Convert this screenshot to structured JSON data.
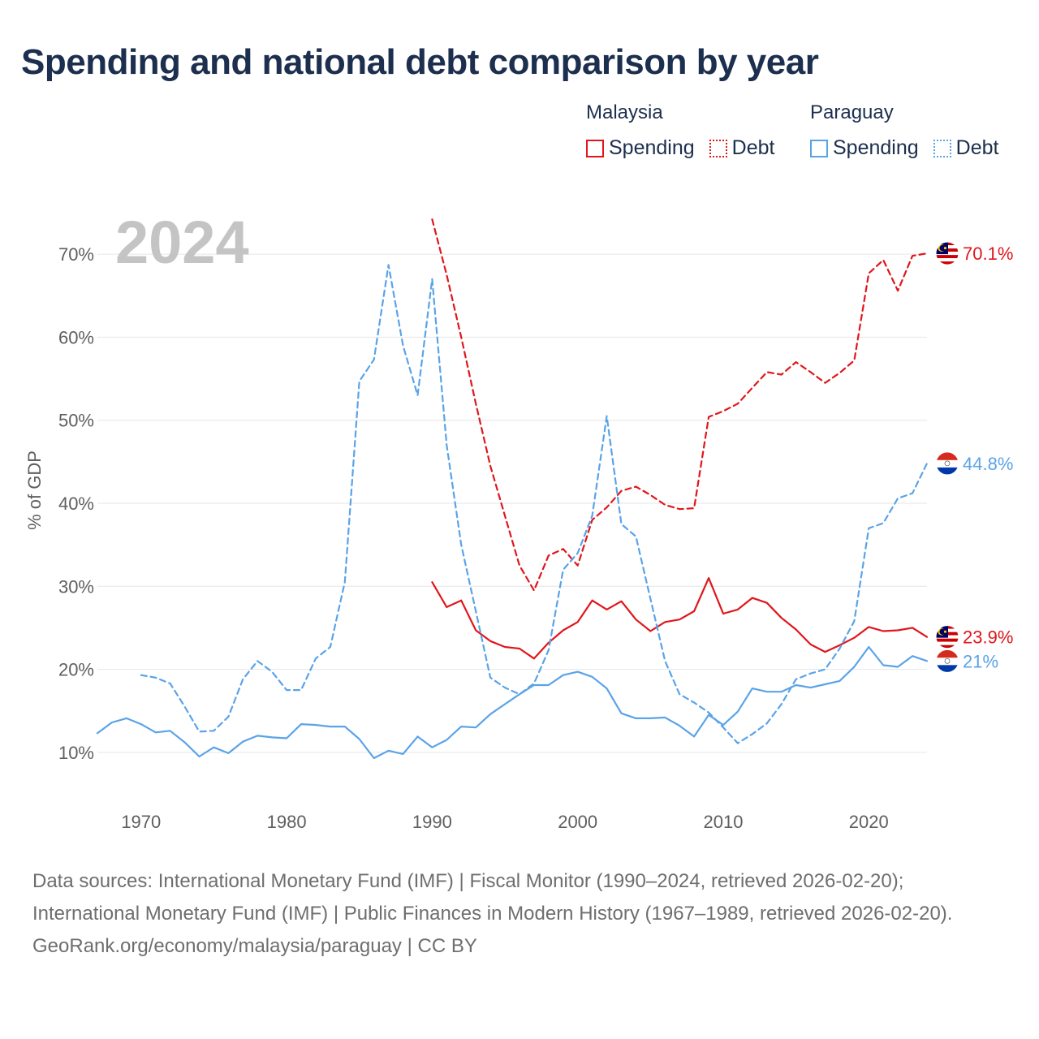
{
  "title": "Spending and national debt comparison by year",
  "legend": {
    "groups": [
      {
        "country": "Malaysia",
        "color": "#e0161b",
        "spending_label": "Spending",
        "debt_label": "Debt"
      },
      {
        "country": "Paraguay",
        "color": "#5aa3e8",
        "spending_label": "Spending",
        "debt_label": "Debt"
      }
    ]
  },
  "footer": {
    "sources": "Data sources: International Monetary Fund (IMF) | Fiscal Monitor (1990–2024, retrieved 2026-02-20); International Monetary Fund (IMF) | Public Finances in Modern History (1967–1989, retrieved 2026-02-20).",
    "credit": "GeoRank.org/economy/malaysia/paraguay | CC BY"
  },
  "chart_data": {
    "type": "line",
    "year_label": "2024",
    "ylabel": "% of GDP",
    "xlim": [
      1967,
      2024
    ],
    "ylim": [
      5,
      75
    ],
    "x_ticks": [
      1970,
      1980,
      1990,
      2000,
      2010,
      2020
    ],
    "x_tick_labels": [
      "1970",
      "1980",
      "1990",
      "2000",
      "2010",
      "2020"
    ],
    "y_ticks": [
      10,
      20,
      30,
      40,
      50,
      60,
      70
    ],
    "y_tick_labels": [
      "10%",
      "20%",
      "30%",
      "40%",
      "50%",
      "60%",
      "70%"
    ],
    "grid": true,
    "series": [
      {
        "name": "Malaysia Debt",
        "country": "Malaysia",
        "metric": "Debt",
        "color": "#e0161b",
        "dashed": true,
        "end_label": "70.1%",
        "x": [
          1990,
          1991,
          1992,
          1993,
          1994,
          1995,
          1996,
          1997,
          1998,
          1999,
          2000,
          2001,
          2002,
          2003,
          2004,
          2005,
          2006,
          2007,
          2008,
          2009,
          2010,
          2011,
          2012,
          2013,
          2014,
          2015,
          2016,
          2017,
          2018,
          2019,
          2020,
          2021,
          2022,
          2023,
          2024
        ],
        "values": [
          74.2,
          67.5,
          60.0,
          52.0,
          44.5,
          38.5,
          32.5,
          29.5,
          33.7,
          34.5,
          32.5,
          38.0,
          39.5,
          41.5,
          42.0,
          41.0,
          39.8,
          39.3,
          39.4,
          50.4,
          51.1,
          52.0,
          53.9,
          55.8,
          55.5,
          57.0,
          55.8,
          54.5,
          55.7,
          57.2,
          67.7,
          69.3,
          65.6,
          69.8,
          70.1
        ]
      },
      {
        "name": "Malaysia Spending",
        "country": "Malaysia",
        "metric": "Spending",
        "color": "#e0161b",
        "dashed": false,
        "end_label": "23.9%",
        "x": [
          1990,
          1991,
          1992,
          1993,
          1994,
          1995,
          1996,
          1997,
          1998,
          1999,
          2000,
          2001,
          2002,
          2003,
          2004,
          2005,
          2006,
          2007,
          2008,
          2009,
          2010,
          2011,
          2012,
          2013,
          2014,
          2015,
          2016,
          2017,
          2018,
          2019,
          2020,
          2021,
          2022,
          2023,
          2024
        ],
        "values": [
          30.5,
          27.5,
          28.3,
          24.7,
          23.4,
          22.7,
          22.5,
          21.3,
          23.2,
          24.7,
          25.7,
          28.3,
          27.2,
          28.2,
          26.0,
          24.6,
          25.7,
          26.0,
          27.0,
          31.0,
          26.7,
          27.2,
          28.6,
          28.0,
          26.2,
          24.8,
          23.0,
          22.1,
          22.9,
          23.8,
          25.1,
          24.6,
          24.7,
          25.0,
          23.9
        ]
      },
      {
        "name": "Paraguay Debt",
        "country": "Paraguay",
        "metric": "Debt",
        "color": "#5aa3e8",
        "dashed": true,
        "end_label": "44.8%",
        "x": [
          1970,
          1971,
          1972,
          1973,
          1974,
          1975,
          1976,
          1977,
          1978,
          1979,
          1980,
          1981,
          1982,
          1983,
          1984,
          1985,
          1986,
          1987,
          1988,
          1989,
          1990,
          1991,
          1992,
          1993,
          1994,
          1995,
          1996,
          1997,
          1998,
          1999,
          2000,
          2001,
          2002,
          2003,
          2004,
          2005,
          2006,
          2007,
          2008,
          2009,
          2010,
          2011,
          2012,
          2013,
          2014,
          2015,
          2016,
          2017,
          2018,
          2019,
          2020,
          2021,
          2022,
          2023,
          2024
        ],
        "values": [
          19.3,
          19.0,
          18.3,
          15.5,
          12.5,
          12.6,
          14.3,
          18.8,
          21.0,
          19.7,
          17.5,
          17.5,
          21.3,
          22.7,
          30.5,
          54.7,
          57.3,
          68.7,
          59.0,
          53.0,
          67.0,
          47.0,
          35.0,
          27.0,
          19.0,
          17.8,
          17.0,
          18.3,
          22.3,
          32.0,
          34.0,
          38.5,
          50.5,
          37.5,
          36.0,
          28.5,
          21.0,
          17.0,
          16.0,
          14.8,
          13.0,
          11.1,
          12.2,
          13.5,
          15.8,
          18.8,
          19.5,
          20.0,
          22.5,
          25.8,
          37.0,
          37.6,
          40.6,
          41.2,
          44.8
        ]
      },
      {
        "name": "Paraguay Spending",
        "country": "Paraguay",
        "metric": "Spending",
        "color": "#5aa3e8",
        "dashed": false,
        "end_label": "21%",
        "x": [
          1967,
          1968,
          1969,
          1970,
          1971,
          1972,
          1973,
          1974,
          1975,
          1976,
          1977,
          1978,
          1979,
          1980,
          1981,
          1982,
          1983,
          1984,
          1985,
          1986,
          1987,
          1988,
          1989,
          1990,
          1991,
          1992,
          1993,
          1994,
          1995,
          1996,
          1997,
          1998,
          1999,
          2000,
          2001,
          2002,
          2003,
          2004,
          2005,
          2006,
          2007,
          2008,
          2009,
          2010,
          2011,
          2012,
          2013,
          2014,
          2015,
          2016,
          2017,
          2018,
          2019,
          2020,
          2021,
          2022,
          2023,
          2024
        ],
        "values": [
          12.3,
          13.6,
          14.1,
          13.4,
          12.4,
          12.6,
          11.2,
          9.5,
          10.6,
          9.9,
          11.3,
          12.0,
          11.8,
          11.7,
          13.4,
          13.3,
          13.1,
          13.1,
          11.6,
          9.3,
          10.2,
          9.8,
          11.9,
          10.6,
          11.5,
          13.1,
          13.0,
          14.6,
          15.8,
          17.0,
          18.1,
          18.1,
          19.3,
          19.7,
          19.1,
          17.7,
          14.7,
          14.1,
          14.1,
          14.2,
          13.2,
          11.9,
          14.5,
          13.3,
          14.9,
          17.7,
          17.3,
          17.3,
          18.1,
          17.8,
          18.2,
          18.6,
          20.3,
          22.7,
          20.5,
          20.3,
          21.6,
          21.0
        ]
      }
    ]
  }
}
